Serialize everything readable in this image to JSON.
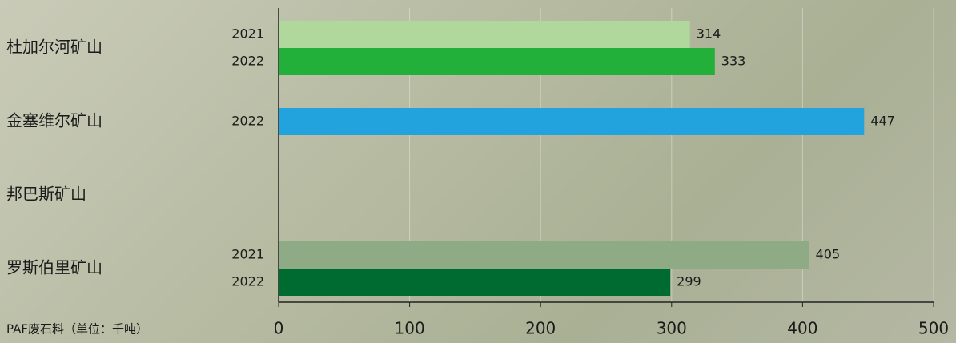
{
  "chart_data": {
    "type": "bar",
    "orientation": "horizontal",
    "x_label": "PAF废石料（单位：千吨）",
    "groups": [
      {
        "name": "杜加尔河矿山",
        "bars": [
          {
            "label": "2021",
            "value": 314,
            "color": "#b0d89c"
          },
          {
            "label": "2022",
            "value": 333,
            "color": "#22b03a"
          }
        ]
      },
      {
        "name": "金塞维尔矿山",
        "bars": [
          {
            "label": "2022",
            "value": 447,
            "color": "#23a3dd"
          }
        ]
      },
      {
        "name": "邦巴斯矿山",
        "bars": []
      },
      {
        "name": "罗斯伯里矿山",
        "bars": [
          {
            "label": "2021",
            "value": 405,
            "color": "#8fab85"
          },
          {
            "label": "2022",
            "value": 299,
            "color": "#006b30"
          }
        ]
      }
    ],
    "xlim": [
      0,
      500
    ],
    "xticks": [
      0,
      100,
      200,
      300,
      400,
      500
    ],
    "grid": true
  }
}
